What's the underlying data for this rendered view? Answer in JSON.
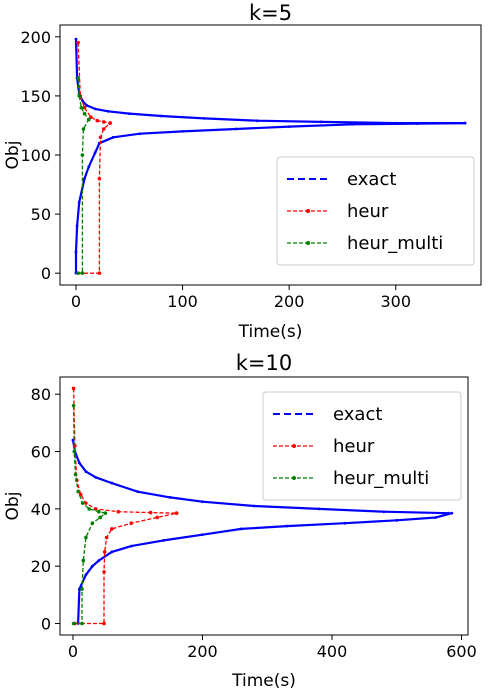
{
  "chart_data": [
    {
      "type": "line",
      "title": "k=5",
      "xlabel": "Time(s)",
      "ylabel": "Obj",
      "xlim": [
        -15,
        380
      ],
      "ylim": [
        -10,
        210
      ],
      "xticks": [
        0,
        100,
        200,
        300
      ],
      "yticks": [
        0,
        50,
        100,
        150,
        200
      ],
      "grid": false,
      "legend": "lower-right",
      "series": [
        {
          "name": "exact",
          "color": "#0000ff",
          "dash": "dashed",
          "upper": [
            [
              0,
              198
            ],
            [
              1,
              165
            ],
            [
              3,
              152
            ],
            [
              6,
              146
            ],
            [
              10,
              142
            ],
            [
              18,
              139
            ],
            [
              30,
              137
            ],
            [
              50,
              135
            ],
            [
              80,
              133
            ],
            [
              120,
              131
            ],
            [
              170,
              129
            ],
            [
              230,
              128
            ],
            [
              300,
              127
            ],
            [
              365,
              127
            ]
          ],
          "lower": [
            [
              0,
              0
            ],
            [
              0,
              18
            ],
            [
              1,
              40
            ],
            [
              3,
              60
            ],
            [
              8,
              80
            ],
            [
              12,
              90
            ],
            [
              18,
              102
            ],
            [
              22,
              110
            ],
            [
              35,
              115
            ],
            [
              60,
              118
            ],
            [
              100,
              120
            ],
            [
              150,
              122
            ],
            [
              200,
              124
            ],
            [
              260,
              126
            ],
            [
              320,
              126.5
            ],
            [
              365,
              127
            ]
          ]
        },
        {
          "name": "heur",
          "color": "#ff0000",
          "dash": "dashed",
          "upper": [
            [
              2,
              195
            ],
            [
              4,
              150
            ],
            [
              8,
              140
            ],
            [
              14,
              132
            ],
            [
              20,
              129
            ],
            [
              26,
              128
            ],
            [
              32,
              127
            ]
          ],
          "lower": [
            [
              2,
              0
            ],
            [
              22,
              0
            ],
            [
              22,
              80
            ],
            [
              23,
              115
            ],
            [
              26,
              122
            ],
            [
              32,
              127
            ]
          ]
        },
        {
          "name": "heur_multi",
          "color": "#008000",
          "dash": "dashed",
          "upper": [
            [
              2,
              165
            ],
            [
              3,
              150
            ],
            [
              5,
              140
            ],
            [
              8,
              135
            ],
            [
              12,
              130
            ]
          ],
          "lower": [
            [
              2,
              0
            ],
            [
              6,
              0
            ],
            [
              6,
              100
            ],
            [
              7,
              122
            ],
            [
              12,
              130
            ]
          ]
        }
      ]
    },
    {
      "type": "line",
      "title": "k=10",
      "xlabel": "Time(s)",
      "ylabel": "Obj",
      "xlim": [
        -20,
        610
      ],
      "ylim": [
        -4,
        86
      ],
      "xticks": [
        0,
        200,
        400,
        600
      ],
      "yticks": [
        0,
        20,
        40,
        60,
        80
      ],
      "grid": false,
      "legend": "upper-right",
      "series": [
        {
          "name": "exact",
          "color": "#0000ff",
          "dash": "dashed",
          "upper": [
            [
              0,
              64
            ],
            [
              3,
              60
            ],
            [
              10,
              56
            ],
            [
              20,
              53
            ],
            [
              35,
              51
            ],
            [
              60,
              49
            ],
            [
              100,
              46
            ],
            [
              150,
              44
            ],
            [
              200,
              42.5
            ],
            [
              280,
              41
            ],
            [
              380,
              40
            ],
            [
              480,
              39
            ],
            [
              580,
              38.5
            ]
          ],
          "lower": [
            [
              8,
              0
            ],
            [
              10,
              12
            ],
            [
              20,
              17
            ],
            [
              30,
              20
            ],
            [
              40,
              22
            ],
            [
              60,
              25
            ],
            [
              90,
              27
            ],
            [
              140,
              29
            ],
            [
              200,
              31
            ],
            [
              260,
              33
            ],
            [
              330,
              34
            ],
            [
              420,
              35
            ],
            [
              500,
              36
            ],
            [
              560,
              37
            ],
            [
              585,
              38.5
            ]
          ]
        },
        {
          "name": "heur",
          "color": "#ff0000",
          "dash": "dashed",
          "upper": [
            [
              1,
              82
            ],
            [
              3,
              62
            ],
            [
              6,
              50
            ],
            [
              12,
              45
            ],
            [
              20,
              42
            ],
            [
              35,
              40
            ],
            [
              70,
              39
            ],
            [
              120,
              38.7
            ],
            [
              160,
              38.5
            ]
          ],
          "lower": [
            [
              3,
              0
            ],
            [
              48,
              0
            ],
            [
              48,
              18
            ],
            [
              49,
              25
            ],
            [
              52,
              30
            ],
            [
              60,
              33
            ],
            [
              90,
              35
            ],
            [
              130,
              37
            ],
            [
              160,
              38.5
            ]
          ]
        },
        {
          "name": "heur_multi",
          "color": "#008000",
          "dash": "dashed",
          "upper": [
            [
              1,
              76
            ],
            [
              2,
              60
            ],
            [
              4,
              52
            ],
            [
              8,
              46
            ],
            [
              15,
              42
            ],
            [
              25,
              40
            ],
            [
              40,
              39
            ],
            [
              50,
              38.5
            ]
          ],
          "lower": [
            [
              1,
              0
            ],
            [
              14,
              0
            ],
            [
              14,
              12
            ],
            [
              16,
              22
            ],
            [
              20,
              30
            ],
            [
              30,
              35
            ],
            [
              42,
              37
            ],
            [
              50,
              38.5
            ]
          ]
        }
      ]
    }
  ]
}
